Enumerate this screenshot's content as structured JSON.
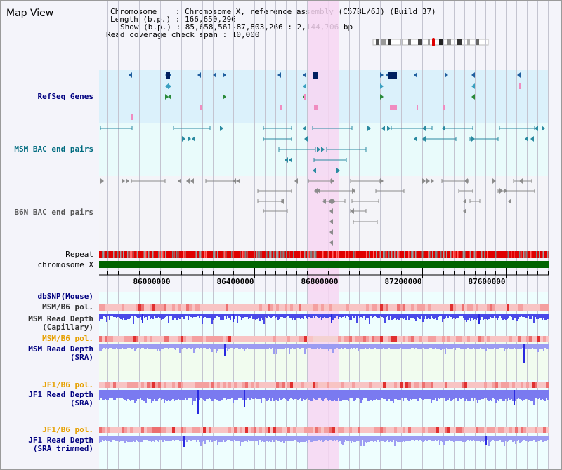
{
  "page": {
    "title": "Map View"
  },
  "info": {
    "chromosome_line": "Chromosome    : Chromosome X, reference assembly (C57BL/6J) (Build 37)",
    "length_line": "Length (b.p.) : 166,650,296",
    "show_line": "Show (b.p.) : 85,658,561-87,803,266 : 2,144,706 bp",
    "coverage_line": "Read coverage check span : 10,000"
  },
  "tracks": {
    "refseq": "RefSeq Genes",
    "msm_bac": "MSM BAC end pairs",
    "b6n_bac": "B6N BAC end pairs",
    "repeat": "Repeat",
    "chromosome": "chromosome X",
    "dbsnp": "dbSNP(Mouse)",
    "msm_b6_pol_1": "MSM/B6 pol.",
    "msm_depth_cap": "MSM Read Depth\n(Capillary)",
    "msm_b6_pol_2": "MSM/B6 pol.",
    "msm_depth_sra": "MSM Read Depth\n(SRA)",
    "jf1_b6_pol_1": "JF1/B6 pol.",
    "jf1_depth_sra": "JF1 Read Depth\n(SRA)",
    "jf1_b6_pol_2": "JF1/B6 pol.",
    "jf1_depth_trim": "JF1 Read Depth\n(SRA trimmed)"
  },
  "axis": {
    "ticks": [
      {
        "label": "86000000",
        "value": 86000000
      },
      {
        "label": "86400000",
        "value": 86400000
      },
      {
        "label": "86800000",
        "value": 86800000
      },
      {
        "label": "87200000",
        "value": 87200000
      },
      {
        "label": "87600000",
        "value": 87600000
      }
    ],
    "start": 85658561,
    "end": 87803266
  },
  "colors": {
    "highlight": "#f7d6f2",
    "refseq_bg": "#dbf1fb",
    "msm_bg": "#e9fbfb",
    "b6n_bg": "#f4f4f8",
    "chromosome": "#006400",
    "repeat": "#e00000",
    "depth": "#5a5ae6",
    "depth_light": "#9a9af0",
    "pol": "#f6b5b5",
    "teal": "#2a8aa0",
    "gray": "#8c8c8c"
  }
}
